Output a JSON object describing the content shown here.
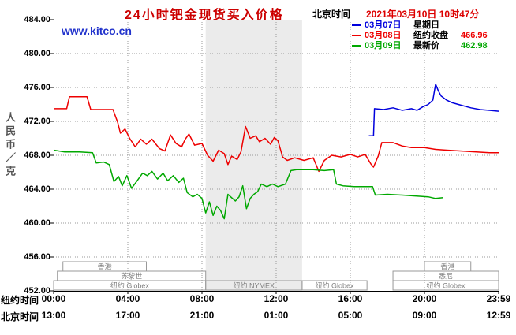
{
  "header": {
    "title": "24小时钯金现货买入价格",
    "timezone_label": "北京时间",
    "datetime": "2021年03月10日 10时47分"
  },
  "watermark": "www.kitco.cn",
  "legend": {
    "position": "top-right",
    "items": [
      {
        "date": "03月07日",
        "label": "星期日",
        "value": "",
        "color": "#0000dd"
      },
      {
        "date": "03月08日",
        "label": "纽约收盘",
        "value": "466.96",
        "color": "#ee0000"
      },
      {
        "date": "03月09日",
        "label": "最新价",
        "value": "462.98",
        "color": "#00a800"
      }
    ]
  },
  "y_axis": {
    "title": "人民币／克",
    "ticks": [
      "484.00",
      "480.00",
      "476.00",
      "472.00",
      "468.00",
      "464.00",
      "460.00",
      "456.00",
      "452.00"
    ]
  },
  "x_axis": {
    "rows": [
      {
        "label": "纽约时间",
        "ticks": [
          "00:00",
          "04:00",
          "08:00",
          "12:00",
          "16:00",
          "20:00",
          "23:59"
        ]
      },
      {
        "label": "北京时间",
        "ticks": [
          "13:00",
          "17:00",
          "21:00",
          "01:00",
          "05:00",
          "09:00",
          "12:59"
        ]
      }
    ]
  },
  "sessions": [
    {
      "label": "香港",
      "row": 0,
      "start": 0.5,
      "end": 5.0
    },
    {
      "label": "香港",
      "row": 0,
      "start": 20.0,
      "end": 22.5
    },
    {
      "label": "苏黎世",
      "row": 1,
      "start": 0.2,
      "end": 8.2
    },
    {
      "label": "悉尼",
      "row": 1,
      "start": 18.3,
      "end": 24.0
    },
    {
      "label": "纽约 Globex",
      "row": 2,
      "start": 0.0,
      "end": 8.2
    },
    {
      "label": "纽约 NYMEX",
      "row": 2,
      "start": 8.2,
      "end": 13.4
    },
    {
      "label": "纽约 Globex",
      "row": 2,
      "start": 13.4,
      "end": 16.9
    },
    {
      "label": "纽约 Globex",
      "row": 2,
      "start": 18.3,
      "end": 24.0
    }
  ],
  "chart_data": {
    "type": "line",
    "title": "24小时钯金现货买入价格",
    "ylabel": "人民币／克",
    "ylim": [
      452,
      484
    ],
    "ytick_step": 4,
    "xlim": [
      0,
      24
    ],
    "x_unit": "hours_new_york_time",
    "grid": true,
    "legend_position": "top-right",
    "band": [
      8.2,
      13.4
    ],
    "band_color": "#ebebeb",
    "series": [
      {
        "name": "03月07日",
        "key": "mar-07",
        "color": "#0000dd",
        "points": [
          [
            17.0,
            470.3
          ],
          [
            17.25,
            470.3
          ],
          [
            17.3,
            473.5
          ],
          [
            17.8,
            473.4
          ],
          [
            18.3,
            473.6
          ],
          [
            18.8,
            473.3
          ],
          [
            19.3,
            473.5
          ],
          [
            19.6,
            473.3
          ],
          [
            19.9,
            473.7
          ],
          [
            20.2,
            474.0
          ],
          [
            20.45,
            474.5
          ],
          [
            20.6,
            476.4
          ],
          [
            20.75,
            475.6
          ],
          [
            20.9,
            475.0
          ],
          [
            21.2,
            474.5
          ],
          [
            21.5,
            474.2
          ],
          [
            22.0,
            473.9
          ],
          [
            22.5,
            473.6
          ],
          [
            23.0,
            473.4
          ],
          [
            23.5,
            473.3
          ],
          [
            24.0,
            473.2
          ]
        ]
      },
      {
        "name": "03月08日",
        "key": "mar-08",
        "color": "#ee0000",
        "points": [
          [
            0.0,
            473.5
          ],
          [
            0.7,
            473.5
          ],
          [
            0.85,
            474.9
          ],
          [
            1.8,
            474.9
          ],
          [
            2.0,
            473.4
          ],
          [
            3.2,
            473.4
          ],
          [
            3.45,
            471.9
          ],
          [
            3.6,
            470.6
          ],
          [
            3.85,
            471.1
          ],
          [
            4.1,
            470.0
          ],
          [
            4.4,
            469.0
          ],
          [
            4.7,
            469.9
          ],
          [
            5.0,
            469.3
          ],
          [
            5.3,
            469.9
          ],
          [
            5.7,
            468.8
          ],
          [
            6.0,
            468.5
          ],
          [
            6.3,
            470.4
          ],
          [
            6.6,
            469.4
          ],
          [
            6.9,
            469.0
          ],
          [
            7.1,
            469.9
          ],
          [
            7.3,
            470.5
          ],
          [
            7.6,
            469.2
          ],
          [
            8.0,
            469.4
          ],
          [
            8.3,
            468.0
          ],
          [
            8.6,
            467.3
          ],
          [
            8.9,
            468.6
          ],
          [
            9.2,
            468.2
          ],
          [
            9.4,
            466.9
          ],
          [
            9.6,
            467.9
          ],
          [
            9.9,
            467.5
          ],
          [
            10.1,
            468.4
          ],
          [
            10.35,
            471.4
          ],
          [
            10.6,
            470.0
          ],
          [
            10.9,
            470.3
          ],
          [
            11.1,
            469.6
          ],
          [
            11.4,
            470.0
          ],
          [
            11.7,
            469.3
          ],
          [
            11.9,
            470.1
          ],
          [
            12.1,
            469.7
          ],
          [
            12.35,
            467.8
          ],
          [
            12.6,
            467.4
          ],
          [
            13.0,
            467.7
          ],
          [
            13.5,
            467.4
          ],
          [
            14.0,
            467.7
          ],
          [
            14.3,
            466.1
          ],
          [
            14.6,
            467.4
          ],
          [
            15.0,
            468.0
          ],
          [
            15.5,
            467.8
          ],
          [
            16.0,
            468.1
          ],
          [
            16.4,
            467.8
          ],
          [
            16.8,
            468.1
          ],
          [
            17.1,
            467.0
          ],
          [
            17.25,
            466.6
          ],
          [
            17.5,
            467.9
          ],
          [
            17.7,
            469.5
          ],
          [
            18.3,
            469.5
          ],
          [
            18.8,
            469.1
          ],
          [
            19.3,
            468.9
          ],
          [
            20.0,
            468.9
          ],
          [
            20.6,
            468.7
          ],
          [
            21.2,
            468.6
          ],
          [
            22.0,
            468.5
          ],
          [
            22.8,
            468.4
          ],
          [
            23.5,
            468.3
          ],
          [
            24.0,
            468.3
          ]
        ]
      },
      {
        "name": "03月09日",
        "key": "mar-09",
        "color": "#00a800",
        "points": [
          [
            0.0,
            468.6
          ],
          [
            0.6,
            468.4
          ],
          [
            1.4,
            468.4
          ],
          [
            2.1,
            468.3
          ],
          [
            2.3,
            467.1
          ],
          [
            2.7,
            467.2
          ],
          [
            3.0,
            466.9
          ],
          [
            3.25,
            464.9
          ],
          [
            3.5,
            465.5
          ],
          [
            3.7,
            464.4
          ],
          [
            3.95,
            465.6
          ],
          [
            4.2,
            464.1
          ],
          [
            4.5,
            465.0
          ],
          [
            4.8,
            465.9
          ],
          [
            5.05,
            465.6
          ],
          [
            5.3,
            466.1
          ],
          [
            5.6,
            465.2
          ],
          [
            5.9,
            465.9
          ],
          [
            6.15,
            465.0
          ],
          [
            6.45,
            465.6
          ],
          [
            6.75,
            464.8
          ],
          [
            7.0,
            465.3
          ],
          [
            7.2,
            463.6
          ],
          [
            7.5,
            463.1
          ],
          [
            7.75,
            463.4
          ],
          [
            8.0,
            462.9
          ],
          [
            8.2,
            461.2
          ],
          [
            8.4,
            462.5
          ],
          [
            8.6,
            460.9
          ],
          [
            8.8,
            462.0
          ],
          [
            9.0,
            461.5
          ],
          [
            9.2,
            460.5
          ],
          [
            9.4,
            463.4
          ],
          [
            9.6,
            463.0
          ],
          [
            9.8,
            462.6
          ],
          [
            10.0,
            463.1
          ],
          [
            10.2,
            464.4
          ],
          [
            10.4,
            461.7
          ],
          [
            10.6,
            462.9
          ],
          [
            10.8,
            463.4
          ],
          [
            11.0,
            463.7
          ],
          [
            11.2,
            464.6
          ],
          [
            11.5,
            464.3
          ],
          [
            11.8,
            464.6
          ],
          [
            12.1,
            464.3
          ],
          [
            12.5,
            464.6
          ],
          [
            12.8,
            466.2
          ],
          [
            13.1,
            466.3
          ],
          [
            14.0,
            466.3
          ],
          [
            14.6,
            466.2
          ],
          [
            15.1,
            466.3
          ],
          [
            15.25,
            464.6
          ],
          [
            15.6,
            464.4
          ],
          [
            16.2,
            464.3
          ],
          [
            16.8,
            464.3
          ],
          [
            17.2,
            464.3
          ],
          [
            17.35,
            463.3
          ],
          [
            18.0,
            463.4
          ],
          [
            18.8,
            463.3
          ],
          [
            19.5,
            463.2
          ],
          [
            20.2,
            463.1
          ],
          [
            20.6,
            462.9
          ],
          [
            21.0,
            463.0
          ]
        ]
      }
    ]
  }
}
